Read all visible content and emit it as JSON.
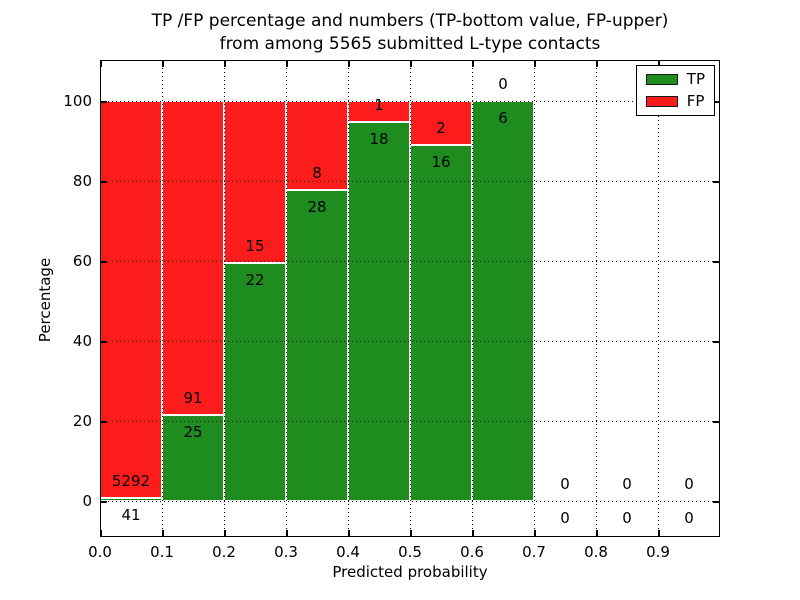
{
  "title": {
    "line1": "TP /FP percentage and numbers (TP-bottom value, FP-upper)",
    "line2": "from among 5565 submitted L-type contacts"
  },
  "chart_data": {
    "type": "bar",
    "stacked": true,
    "title": "TP /FP percentage and numbers (TP-bottom value, FP-upper) from among 5565 submitted L-type contacts",
    "xlabel": "Predicted probability",
    "ylabel": "Percentage",
    "xlim": [
      0.0,
      1.0
    ],
    "ylim": [
      -9,
      110
    ],
    "x_ticks": [
      "0.0",
      "0.1",
      "0.2",
      "0.3",
      "0.4",
      "0.5",
      "0.6",
      "0.7",
      "0.8",
      "0.9"
    ],
    "y_ticks": [
      "0",
      "20",
      "40",
      "60",
      "80",
      "100"
    ],
    "y_tick_values": [
      0,
      20,
      40,
      60,
      80,
      100
    ],
    "grid": "dotted-black-both-axes",
    "bin_width": 0.1,
    "bins": [
      {
        "range": [
          0.0,
          0.1
        ],
        "tp": 41,
        "fp": 5292
      },
      {
        "range": [
          0.1,
          0.2
        ],
        "tp": 25,
        "fp": 91
      },
      {
        "range": [
          0.2,
          0.3
        ],
        "tp": 22,
        "fp": 15
      },
      {
        "range": [
          0.3,
          0.4
        ],
        "tp": 28,
        "fp": 8
      },
      {
        "range": [
          0.4,
          0.5
        ],
        "tp": 18,
        "fp": 1
      },
      {
        "range": [
          0.5,
          0.6
        ],
        "tp": 16,
        "fp": 2
      },
      {
        "range": [
          0.6,
          0.7
        ],
        "tp": 6,
        "fp": 0
      },
      {
        "range": [
          0.7,
          0.8
        ],
        "tp": 0,
        "fp": 0
      },
      {
        "range": [
          0.8,
          0.9
        ],
        "tp": 0,
        "fp": 0
      },
      {
        "range": [
          0.9,
          1.0
        ],
        "tp": 0,
        "fp": 0
      }
    ],
    "series": [
      {
        "name": "TP",
        "color": "#1e8c1e",
        "position": "bottom"
      },
      {
        "name": "FP",
        "color": "#fd1c1c",
        "position": "top"
      }
    ],
    "bar_edge_color": "#ffffff",
    "annotation_note": "TP count below segment boundary, FP count above segment boundary",
    "legend": {
      "position": "upper right",
      "entries": [
        {
          "label": "TP",
          "color": "#1e8c1e"
        },
        {
          "label": "FP",
          "color": "#fd1c1c"
        }
      ]
    }
  }
}
